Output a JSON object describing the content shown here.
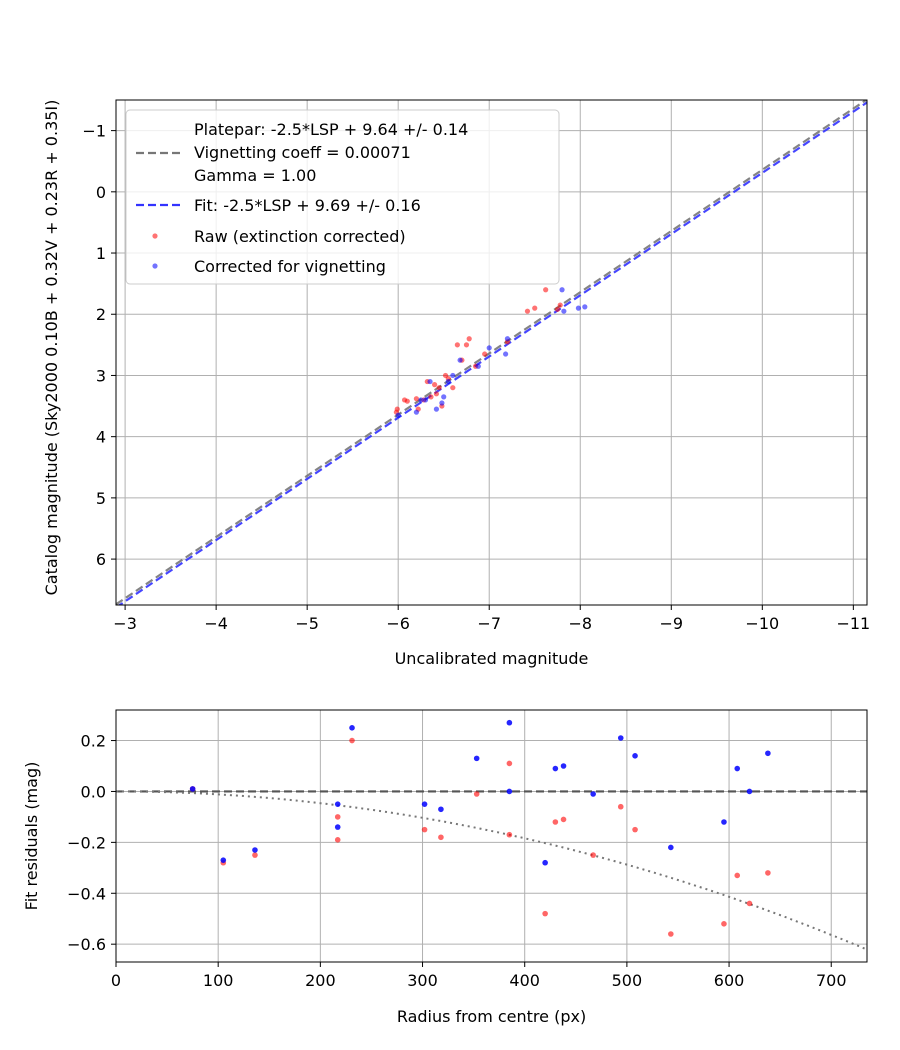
{
  "chart_data": [
    {
      "type": "scatter",
      "title": "",
      "xlabel": "Uncalibrated magnitude",
      "ylabel": "Catalog magnitude (Sky2000 0.10B + 0.32V + 0.23R + 0.35I)",
      "xlim": [
        -2.9,
        -11.15
      ],
      "ylim": [
        6.75,
        -1.5
      ],
      "xticks": [
        -3,
        -4,
        -5,
        -6,
        -7,
        -8,
        -9,
        -10,
        -11
      ],
      "xtick_labels": [
        "−3",
        "−4",
        "−5",
        "−6",
        "−7",
        "−8",
        "−9",
        "−10",
        "−11"
      ],
      "yticks": [
        -1,
        0,
        1,
        2,
        3,
        4,
        5,
        6
      ],
      "ytick_labels": [
        "−1",
        "0",
        "1",
        "2",
        "3",
        "4",
        "5",
        "6"
      ],
      "grid": true,
      "legend_position": "top-left",
      "legend": {
        "platepar_lines": [
          "Platepar: -2.5*LSP + 9.64 +/- 0.14",
          "Vignetting coeff = 0.00071",
          "Gamma = 1.00"
        ],
        "fit": "Fit: -2.5*LSP + 9.69 +/- 0.16",
        "raw": "Raw (extinction corrected)",
        "corrected": "Corrected for vignetting"
      },
      "lines": [
        {
          "name": "Platepar",
          "color": "#777777",
          "dash": true,
          "offset": 9.64
        },
        {
          "name": "Fit",
          "color": "#3333ff",
          "dash": true,
          "offset": 9.69
        }
      ],
      "series": [
        {
          "name": "Raw (extinction corrected)",
          "color": "#ff0000",
          "points": [
            [
              -5.98,
              3.6
            ],
            [
              -5.99,
              3.55
            ],
            [
              -6.07,
              3.4
            ],
            [
              -6.1,
              3.42
            ],
            [
              -6.2,
              3.38
            ],
            [
              -6.22,
              3.55
            ],
            [
              -6.28,
              3.4
            ],
            [
              -6.32,
              3.1
            ],
            [
              -6.36,
              3.35
            ],
            [
              -6.4,
              3.15
            ],
            [
              -6.42,
              3.3
            ],
            [
              -6.45,
              3.2
            ],
            [
              -6.48,
              3.5
            ],
            [
              -6.52,
              3.0
            ],
            [
              -6.55,
              3.05
            ],
            [
              -6.6,
              3.2
            ],
            [
              -6.65,
              2.5
            ],
            [
              -6.7,
              2.75
            ],
            [
              -6.75,
              2.5
            ],
            [
              -6.78,
              2.4
            ],
            [
              -6.85,
              2.85
            ],
            [
              -6.95,
              2.65
            ],
            [
              -7.2,
              2.45
            ],
            [
              -7.42,
              1.95
            ],
            [
              -7.5,
              1.9
            ],
            [
              -7.62,
              1.6
            ],
            [
              -7.75,
              1.92
            ],
            [
              -7.78,
              1.85
            ]
          ]
        },
        {
          "name": "Corrected for vignetting",
          "color": "#0000ff",
          "points": [
            [
              -6.0,
              3.65
            ],
            [
              -6.2,
              3.6
            ],
            [
              -6.25,
              3.4
            ],
            [
              -6.3,
              3.4
            ],
            [
              -6.35,
              3.1
            ],
            [
              -6.42,
              3.55
            ],
            [
              -6.48,
              3.45
            ],
            [
              -6.5,
              3.35
            ],
            [
              -6.55,
              3.1
            ],
            [
              -6.6,
              3.0
            ],
            [
              -6.68,
              2.75
            ],
            [
              -6.88,
              2.85
            ],
            [
              -7.0,
              2.55
            ],
            [
              -7.18,
              2.65
            ],
            [
              -7.2,
              2.4
            ],
            [
              -7.82,
              1.95
            ],
            [
              -7.8,
              1.6
            ],
            [
              -7.98,
              1.9
            ],
            [
              -8.05,
              1.88
            ]
          ]
        }
      ]
    },
    {
      "type": "scatter",
      "title": "",
      "xlabel": "Radius from centre (px)",
      "ylabel": "Fit residuals (mag)",
      "xlim": [
        0,
        735
      ],
      "ylim": [
        -0.67,
        0.32
      ],
      "xticks": [
        0,
        100,
        200,
        300,
        400,
        500,
        600,
        700
      ],
      "xtick_labels": [
        "0",
        "100",
        "200",
        "300",
        "400",
        "500",
        "600",
        "700"
      ],
      "yticks": [
        0.2,
        0.0,
        -0.2,
        -0.4,
        -0.6
      ],
      "ytick_labels": [
        "0.2",
        "0.0",
        "−0.2",
        "−0.4",
        "−0.6"
      ],
      "grid": true,
      "lines": [
        {
          "name": "zero",
          "color": "#555555",
          "dash": true,
          "value": 0.0
        },
        {
          "name": "vignetting curve",
          "color": "#777777",
          "dotted": true,
          "coeff": -1.15e-06
        }
      ],
      "series": [
        {
          "name": "Raw (extinction corrected)",
          "color": "#ff0000",
          "points": [
            [
              75,
              0.01
            ],
            [
              105,
              -0.28
            ],
            [
              136,
              -0.25
            ],
            [
              217,
              -0.1
            ],
            [
              217,
              -0.19
            ],
            [
              231,
              0.2
            ],
            [
              302,
              -0.15
            ],
            [
              318,
              -0.18
            ],
            [
              353,
              -0.01
            ],
            [
              385,
              0.11
            ],
            [
              385,
              -0.17
            ],
            [
              420,
              -0.48
            ],
            [
              430,
              -0.12
            ],
            [
              438,
              -0.11
            ],
            [
              467,
              -0.25
            ],
            [
              494,
              -0.06
            ],
            [
              508,
              -0.15
            ],
            [
              543,
              -0.56
            ],
            [
              595,
              -0.52
            ],
            [
              608,
              -0.33
            ],
            [
              620,
              -0.44
            ],
            [
              638,
              -0.32
            ]
          ]
        },
        {
          "name": "Corrected for vignetting",
          "color": "#0000ff",
          "points": [
            [
              75,
              0.01
            ],
            [
              105,
              -0.27
            ],
            [
              136,
              -0.23
            ],
            [
              217,
              -0.05
            ],
            [
              217,
              -0.14
            ],
            [
              231,
              0.25
            ],
            [
              302,
              -0.05
            ],
            [
              318,
              -0.07
            ],
            [
              353,
              0.13
            ],
            [
              385,
              0.27
            ],
            [
              385,
              0.0
            ],
            [
              420,
              -0.28
            ],
            [
              430,
              0.09
            ],
            [
              438,
              0.1
            ],
            [
              467,
              -0.01
            ],
            [
              494,
              0.21
            ],
            [
              508,
              0.14
            ],
            [
              543,
              -0.22
            ],
            [
              595,
              -0.12
            ],
            [
              608,
              0.09
            ],
            [
              620,
              0.0
            ],
            [
              638,
              0.15
            ]
          ]
        }
      ]
    }
  ]
}
